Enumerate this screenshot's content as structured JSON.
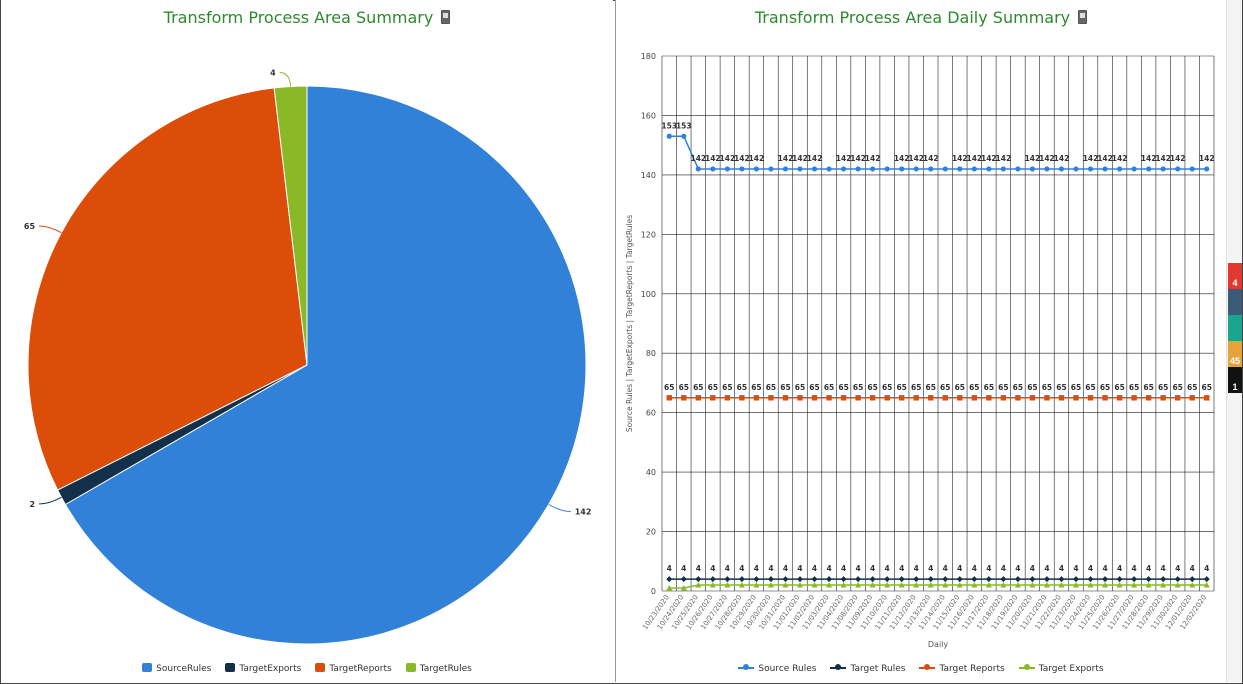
{
  "left_panel": {
    "title": "Transform Process Area Summary",
    "legend": [
      {
        "label": "SourceRules",
        "color": "#3181d9"
      },
      {
        "label": "TargetExports",
        "color": "#13304a"
      },
      {
        "label": "TargetReports",
        "color": "#dc4d0a"
      },
      {
        "label": "TargetRules",
        "color": "#8ab927"
      }
    ]
  },
  "right_panel": {
    "title": "Transform Process Area Daily Summary",
    "xlabel": "Daily",
    "ylabel": "Source Rules | TargetExports | TargetReports | TargetRules",
    "legend": [
      {
        "label": "Source Rules",
        "color": "#3181d9",
        "icon": "circle-marker"
      },
      {
        "label": "Target Rules",
        "color": "#13304a",
        "icon": "diamond-marker"
      },
      {
        "label": "Target Reports",
        "color": "#dc4d0a",
        "icon": "square-marker"
      },
      {
        "label": "Target Exports",
        "color": "#8ab927",
        "icon": "triangle-marker"
      }
    ]
  },
  "side_tabs": [
    {
      "icon": "mail-icon",
      "value": "4",
      "color": "#e03a2e"
    },
    {
      "icon": "list-icon",
      "value": "",
      "color": "#3c5a7a"
    },
    {
      "icon": "book-icon",
      "value": "",
      "color": "#1aa58f"
    },
    {
      "icon": "gear-icon",
      "value": "45",
      "color": "#e8a23a"
    },
    {
      "icon": "grid-icon",
      "value": "1",
      "color": "#111111"
    }
  ],
  "chart_data": [
    {
      "type": "pie",
      "title": "Transform Process Area Summary",
      "slices": [
        {
          "label": "SourceRules",
          "value": 142,
          "color": "#3181d9"
        },
        {
          "label": "TargetExports",
          "value": 2,
          "color": "#13304a"
        },
        {
          "label": "TargetReports",
          "value": 65,
          "color": "#dc4d0a"
        },
        {
          "label": "TargetRules",
          "value": 4,
          "color": "#8ab927"
        }
      ]
    },
    {
      "type": "line",
      "title": "Transform Process Area Daily Summary",
      "xlabel": "Daily",
      "ylabel": "Source Rules | TargetExports | TargetReports | TargetRules",
      "ylim": [
        0,
        180
      ],
      "yticks": [
        0,
        20,
        40,
        60,
        80,
        100,
        120,
        140,
        160,
        180
      ],
      "grid": true,
      "legend_position": "bottom",
      "categories": [
        "10/23/2020",
        "10/24/2020",
        "10/25/2020",
        "10/26/2020",
        "10/27/2020",
        "10/28/2020",
        "10/29/2020",
        "10/30/2020",
        "10/31/2020",
        "11/01/2020",
        "11/02/2020",
        "11/03/2020",
        "11/04/2020",
        "11/08/2020",
        "11/09/2020",
        "11/10/2020",
        "11/11/2020",
        "11/12/2020",
        "11/13/2020",
        "11/14/2020",
        "11/15/2020",
        "11/16/2020",
        "11/17/2020",
        "11/18/2020",
        "11/19/2020",
        "11/20/2020",
        "11/21/2020",
        "11/22/2020",
        "11/23/2020",
        "11/24/2020",
        "11/25/2020",
        "11/26/2020",
        "11/27/2020",
        "11/28/2020",
        "11/29/2020",
        "11/30/2020",
        "12/01/2020",
        "12/02/2020"
      ],
      "series": [
        {
          "name": "Source Rules",
          "color": "#3181d9",
          "marker": "circle",
          "values": [
            153,
            153,
            142,
            142,
            142,
            142,
            142,
            142,
            142,
            142,
            142,
            142,
            142,
            142,
            142,
            142,
            142,
            142,
            142,
            142,
            142,
            142,
            142,
            142,
            142,
            142,
            142,
            142,
            142,
            142,
            142,
            142,
            142,
            142,
            142,
            142,
            142,
            142
          ],
          "value_labels": [
            "153",
            "153",
            "142",
            "142",
            "142",
            "142",
            "142",
            "",
            "142",
            "142",
            "142",
            "",
            "142",
            "142",
            "142",
            "",
            "142",
            "142",
            "142",
            "",
            "142",
            "142",
            "142",
            "142",
            "",
            "142",
            "142",
            "142",
            "",
            "142",
            "142",
            "142",
            "",
            "142",
            "142",
            "142",
            "",
            "142"
          ]
        },
        {
          "name": "Target Rules",
          "color": "#13304a",
          "marker": "diamond",
          "values": [
            4,
            4,
            4,
            4,
            4,
            4,
            4,
            4,
            4,
            4,
            4,
            4,
            4,
            4,
            4,
            4,
            4,
            4,
            4,
            4,
            4,
            4,
            4,
            4,
            4,
            4,
            4,
            4,
            4,
            4,
            4,
            4,
            4,
            4,
            4,
            4,
            4,
            4
          ],
          "value_labels": [
            "4",
            "4",
            "4",
            "4",
            "4",
            "4",
            "4",
            "4",
            "4",
            "4",
            "4",
            "4",
            "4",
            "4",
            "4",
            "4",
            "4",
            "4",
            "4",
            "4",
            "4",
            "4",
            "4",
            "4",
            "4",
            "4",
            "4",
            "4",
            "4",
            "4",
            "4",
            "4",
            "4",
            "4",
            "4",
            "4",
            "4",
            "4"
          ]
        },
        {
          "name": "Target Reports",
          "color": "#dc4d0a",
          "marker": "square",
          "values": [
            65,
            65,
            65,
            65,
            65,
            65,
            65,
            65,
            65,
            65,
            65,
            65,
            65,
            65,
            65,
            65,
            65,
            65,
            65,
            65,
            65,
            65,
            65,
            65,
            65,
            65,
            65,
            65,
            65,
            65,
            65,
            65,
            65,
            65,
            65,
            65,
            65,
            65
          ],
          "value_labels": [
            "65",
            "65",
            "65",
            "65",
            "65",
            "65",
            "65",
            "65",
            "65",
            "65",
            "65",
            "65",
            "65",
            "65",
            "65",
            "65",
            "65",
            "65",
            "65",
            "65",
            "65",
            "65",
            "65",
            "65",
            "65",
            "65",
            "65",
            "65",
            "65",
            "65",
            "65",
            "65",
            "65",
            "65",
            "65",
            "65",
            "65",
            "65"
          ]
        },
        {
          "name": "Target Exports",
          "color": "#8ab927",
          "marker": "triangle",
          "values": [
            1,
            1,
            2,
            2,
            2,
            2,
            2,
            2,
            2,
            2,
            2,
            2,
            2,
            2,
            2,
            2,
            2,
            2,
            2,
            2,
            2,
            2,
            2,
            2,
            2,
            2,
            2,
            2,
            2,
            2,
            2,
            2,
            2,
            2,
            2,
            2,
            2,
            2
          ],
          "value_labels": []
        }
      ]
    }
  ]
}
